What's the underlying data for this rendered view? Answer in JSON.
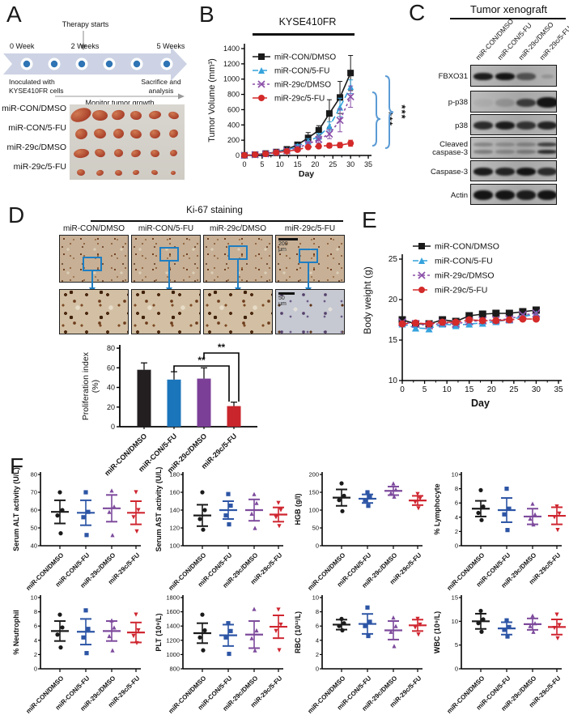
{
  "groups": [
    "miR-CON/DMSO",
    "miR-CON/5-FU",
    "miR-29c/DMSO",
    "miR-29c/5-FU"
  ],
  "panel_a": {
    "label": "A",
    "therapy_starts": "Therapy  starts",
    "weeks": [
      "0  Week",
      "2 Weeks",
      "5 Weeks"
    ],
    "inoculated": [
      "Inoculated with",
      "KYSE410FR cells"
    ],
    "sacrifice": [
      "Sacrifice and",
      "analysis"
    ],
    "monitor": "Monitor tumor growth",
    "photo_rows": [
      "miR-CON/DMSO",
      "miR-CON/5-FU",
      "miR-29c/DMSO",
      "miR-29c/5-FU"
    ]
  },
  "panel_b": {
    "label": "B",
    "title": "KYSE410FR",
    "significance": [
      "***",
      "***"
    ],
    "bracket_color": "#5b9bd5"
  },
  "panel_c": {
    "label": "C",
    "title": "Tumor xenograft",
    "lanes": [
      "miR-CON/DMSO",
      "miR-CON/5-FU",
      "miR-29c/DMSO",
      "miR-29c/5-FU"
    ],
    "rows": [
      {
        "label": [
          "FBXO31"
        ],
        "bands": [
          0.95,
          1,
          0.6,
          0.18
        ],
        "double": false
      },
      {
        "label": [
          "p-p38"
        ],
        "bands": [
          0.06,
          0.18,
          0.75,
          1
        ],
        "double": false
      },
      {
        "label": [
          "p38"
        ],
        "bands": [
          0.85,
          0.95,
          0.8,
          0.9
        ],
        "double": false
      },
      {
        "label": [
          "Cleaved",
          "caspase-3"
        ],
        "bands": [
          0.35,
          0.28,
          0.35,
          0.85
        ],
        "double": true
      },
      {
        "label": [
          "Caspase-3"
        ],
        "bands": [
          0.95,
          0.9,
          1,
          0.85
        ],
        "double": false
      },
      {
        "label": [
          "Actin"
        ],
        "bands": [
          1,
          1,
          0.95,
          1
        ],
        "double": false
      }
    ]
  },
  "panel_d": {
    "label": "D",
    "title": "Ki-67 staining",
    "columns": [
      "miR-CON/DMSO",
      "miR-CON/5-FU",
      "miR-29c/DMSO",
      "miR-29c/5-FU"
    ],
    "scale_bar_top": "200 μm",
    "scale_bar_bottom": "50 μm"
  },
  "panel_e": {
    "label": "E"
  },
  "panel_f": {
    "label": "F"
  },
  "chart_data": [
    {
      "id": "tumor_volume",
      "type": "line",
      "title": "KYSE410FR",
      "xlabel": "Day",
      "ylabel": "Tumor Volume (mm³)",
      "xlim": [
        0,
        35
      ],
      "ylim": [
        0,
        1400
      ],
      "xticks": [
        0,
        5,
        10,
        15,
        20,
        25,
        30,
        35
      ],
      "yticks": [
        0,
        200,
        400,
        600,
        800,
        1000,
        1200,
        1400
      ],
      "x": [
        0,
        3,
        6,
        9,
        12,
        15,
        18,
        21,
        24,
        27,
        30
      ],
      "series": [
        {
          "name": "miR-CON/DMSO",
          "color": "#1a1a1a",
          "dash": "",
          "marker": "square",
          "values": [
            2,
            10,
            25,
            45,
            80,
            140,
            230,
            330,
            550,
            760,
            1080
          ],
          "errors": [
            2,
            3,
            5,
            8,
            15,
            30,
            70,
            60,
            180,
            210,
            230
          ]
        },
        {
          "name": "miR-CON/5-FU",
          "color": "#35a3dc",
          "dash": "7,4",
          "marker": "triangle",
          "values": [
            2,
            10,
            22,
            42,
            70,
            120,
            185,
            250,
            380,
            630,
            900
          ],
          "errors": [
            2,
            3,
            5,
            8,
            12,
            25,
            35,
            40,
            60,
            120,
            90
          ]
        },
        {
          "name": "miR-29c/DMSO",
          "color": "#8a4fa8",
          "dash": "3,3",
          "marker": "x",
          "values": [
            2,
            10,
            20,
            40,
            60,
            100,
            150,
            210,
            280,
            460,
            770
          ],
          "errors": [
            2,
            3,
            5,
            8,
            10,
            20,
            30,
            45,
            60,
            150,
            140
          ]
        },
        {
          "name": "miR-29c/5-FU",
          "color": "#d42a2a",
          "dash": "7,4",
          "marker": "circle",
          "values": [
            2,
            10,
            20,
            38,
            55,
            75,
            110,
            120,
            130,
            135,
            160
          ],
          "errors": [
            2,
            3,
            5,
            8,
            10,
            12,
            20,
            25,
            30,
            35,
            40
          ]
        }
      ],
      "significance": [
        "***",
        "***"
      ]
    },
    {
      "id": "proliferation_index",
      "type": "bar",
      "ylabel": [
        "Proliferation index",
        "(%)"
      ],
      "ylim": [
        0,
        80
      ],
      "yticks": [
        0,
        20,
        40,
        60,
        80
      ],
      "categories": [
        "miR-CON/DMSO",
        "miR-CON/5-FU",
        "miR-29c/DMSO",
        "miR-29c/5-FU"
      ],
      "values": [
        58,
        48,
        49,
        21
      ],
      "errors": [
        7,
        8,
        11,
        4
      ],
      "colors": [
        "#231f20",
        "#1b75bb",
        "#7c3f98",
        "#c9252c"
      ],
      "significance": [
        {
          "from": 1,
          "to": 3,
          "label": "**"
        },
        {
          "from": 2,
          "to": 3,
          "label": "**"
        }
      ]
    },
    {
      "id": "body_weight",
      "type": "line",
      "xlabel": "Day",
      "ylabel": "Body weight (g)",
      "xlim": [
        0,
        35
      ],
      "ylim": [
        10,
        25
      ],
      "xticks": [
        0,
        5,
        10,
        15,
        20,
        25,
        30,
        35
      ],
      "yticks": [
        10,
        15,
        20,
        25
      ],
      "x": [
        0,
        3,
        6,
        9,
        12,
        15,
        18,
        21,
        24,
        27,
        30
      ],
      "series": [
        {
          "name": "miR-CON/DMSO",
          "color": "#1a1a1a",
          "dash": "",
          "marker": "square",
          "values": [
            17.5,
            17,
            17,
            17.5,
            17.3,
            18,
            18.2,
            18.3,
            18.3,
            18.5,
            18.7
          ],
          "err": 0.8
        },
        {
          "name": "miR-CON/5-FU",
          "color": "#35a3dc",
          "dash": "7,4",
          "marker": "triangle",
          "values": [
            17,
            16.5,
            16.4,
            17,
            16.8,
            17,
            17.1,
            17.3,
            17.5,
            17.9,
            18.2
          ],
          "err": 0.8
        },
        {
          "name": "miR-29c/DMSO",
          "color": "#8a4fa8",
          "dash": "3,3",
          "marker": "x",
          "values": [
            17.2,
            17,
            16.8,
            17.1,
            17,
            17.3,
            17.4,
            17.5,
            17.6,
            18.1,
            18.3
          ],
          "err": 0.7
        },
        {
          "name": "miR-29c/5-FU",
          "color": "#d42a2a",
          "dash": "7,4",
          "marker": "circle",
          "values": [
            17,
            17.1,
            17,
            17.2,
            17.2,
            17.5,
            17.4,
            17.4,
            17.5,
            17.6,
            17.6
          ],
          "err": 0.7
        }
      ]
    },
    {
      "id": "serum_alt",
      "type": "scatter",
      "ylabel": "Serum ALT activity  (U/L)",
      "ylim": [
        40,
        80
      ],
      "yticks": [
        40,
        50,
        60,
        70,
        80
      ],
      "groups": [
        {
          "name": "miR-CON/DMSO",
          "color": "#1a1a1a",
          "marker": "circle",
          "points": [
            70,
            60,
            57,
            47
          ],
          "mean": 59,
          "sd": 6.5
        },
        {
          "name": "miR-CON/5-FU",
          "color": "#2d55a5",
          "marker": "square",
          "points": [
            70,
            59,
            56,
            46
          ],
          "mean": 58.5,
          "sd": 7
        },
        {
          "name": "miR-29c/DMSO",
          "color": "#7d4a9c",
          "marker": "triangle",
          "points": [
            71,
            62,
            59,
            46
          ],
          "mean": 61,
          "sd": 7.5
        },
        {
          "name": "miR-29c/5-FU",
          "color": "#cf2630",
          "marker": "triangle-down",
          "points": [
            70,
            60,
            56,
            48
          ],
          "mean": 58.5,
          "sd": 6.5
        }
      ]
    },
    {
      "id": "serum_ast",
      "type": "scatter",
      "ylabel": "Serum AST activity  (U/L)",
      "ylim": [
        100,
        180
      ],
      "yticks": [
        100,
        120,
        140,
        160,
        180
      ],
      "groups": [
        {
          "name": "miR-CON/DMSO",
          "color": "#1a1a1a",
          "marker": "circle",
          "points": [
            160,
            140,
            130,
            118
          ],
          "mean": 134,
          "sd": 12
        },
        {
          "name": "miR-CON/5-FU",
          "color": "#2d55a5",
          "marker": "square",
          "points": [
            158,
            145,
            134,
            124
          ],
          "mean": 140,
          "sd": 10
        },
        {
          "name": "miR-29c/DMSO",
          "color": "#7d4a9c",
          "marker": "triangle",
          "points": [
            158,
            148,
            136,
            120
          ],
          "mean": 140,
          "sd": 12
        },
        {
          "name": "miR-29c/5-FU",
          "color": "#cf2630",
          "marker": "triangle-down",
          "points": [
            148,
            140,
            132,
            122
          ],
          "mean": 135,
          "sd": 8
        }
      ]
    },
    {
      "id": "hgb",
      "type": "scatter",
      "ylabel": "HGB  (g/l)",
      "ylim": [
        0,
        200
      ],
      "yticks": [
        0,
        50,
        100,
        150,
        200
      ],
      "groups": [
        {
          "name": "miR-CON/DMSO",
          "color": "#1a1a1a",
          "marker": "circle",
          "points": [
            175,
            140,
            128,
            97
          ],
          "mean": 135,
          "sd": 23
        },
        {
          "name": "miR-CON/5-FU",
          "color": "#2d55a5",
          "marker": "square",
          "points": [
            150,
            138,
            128,
            112
          ],
          "mean": 132,
          "sd": 12
        },
        {
          "name": "miR-29c/DMSO",
          "color": "#7d4a9c",
          "marker": "triangle",
          "points": [
            175,
            158,
            148,
            138
          ],
          "mean": 154,
          "sd": 12
        },
        {
          "name": "miR-29c/5-FU",
          "color": "#cf2630",
          "marker": "triangle-down",
          "points": [
            145,
            132,
            122,
            105
          ],
          "mean": 127,
          "sd": 13
        }
      ]
    },
    {
      "id": "lymphocyte",
      "type": "scatter",
      "ylabel": "% Lymphocyte",
      "ylim": [
        0,
        10
      ],
      "yticks": [
        0,
        2,
        4,
        6,
        8,
        10
      ],
      "groups": [
        {
          "name": "miR-CON/DMSO",
          "color": "#1a1a1a",
          "marker": "circle",
          "points": [
            7.8,
            5.5,
            4.6,
            3.6
          ],
          "mean": 5.2,
          "sd": 1.1
        },
        {
          "name": "miR-CON/5-FU",
          "color": "#2d55a5",
          "marker": "square",
          "points": [
            8,
            5.2,
            4.4,
            2.2
          ],
          "mean": 5,
          "sd": 1.7
        },
        {
          "name": "miR-29c/DMSO",
          "color": "#7d4a9c",
          "marker": "triangle",
          "points": [
            5.9,
            4.4,
            3.8,
            3
          ],
          "mean": 4.1,
          "sd": 1.1
        },
        {
          "name": "miR-29c/5-FU",
          "color": "#cf2630",
          "marker": "triangle-down",
          "points": [
            5.5,
            4.5,
            4,
            2.2
          ],
          "mean": 4.2,
          "sd": 1.2
        }
      ]
    },
    {
      "id": "neutrophil",
      "type": "scatter",
      "ylabel": "% Neutrophil",
      "ylim": [
        0,
        10
      ],
      "yticks": [
        0,
        2,
        4,
        6,
        8,
        10
      ],
      "groups": [
        {
          "name": "miR-CON/DMSO",
          "color": "#1a1a1a",
          "marker": "circle",
          "points": [
            7.6,
            5.8,
            4.8,
            3
          ],
          "mean": 5.3,
          "sd": 1.4
        },
        {
          "name": "miR-CON/5-FU",
          "color": "#2d55a5",
          "marker": "square",
          "points": [
            8.2,
            5.6,
            4.4,
            2.2
          ],
          "mean": 5.2,
          "sd": 1.8
        },
        {
          "name": "miR-29c/DMSO",
          "color": "#7d4a9c",
          "marker": "triangle",
          "points": [
            6.8,
            5.8,
            4.6,
            2.6
          ],
          "mean": 5.3,
          "sd": 1.4
        },
        {
          "name": "miR-29c/5-FU",
          "color": "#cf2630",
          "marker": "triangle-down",
          "points": [
            7.6,
            5.4,
            4.6,
            3.6
          ],
          "mean": 5.1,
          "sd": 1.4
        }
      ]
    },
    {
      "id": "plt",
      "type": "scatter",
      "ylabel": "PLT  (10⁹/L)",
      "ylim": [
        800,
        1800
      ],
      "yticks": [
        800,
        1000,
        1200,
        1400,
        1600,
        1800
      ],
      "groups": [
        {
          "name": "miR-CON/DMSO",
          "color": "#1a1a1a",
          "marker": "circle",
          "points": [
            1560,
            1340,
            1240,
            1060
          ],
          "mean": 1300,
          "sd": 140
        },
        {
          "name": "miR-CON/5-FU",
          "color": "#2d55a5",
          "marker": "square",
          "points": [
            1440,
            1330,
            1240,
            1010
          ],
          "mean": 1270,
          "sd": 150
        },
        {
          "name": "miR-29c/DMSO",
          "color": "#7d4a9c",
          "marker": "triangle",
          "points": [
            1640,
            1340,
            1230,
            1060
          ],
          "mean": 1280,
          "sd": 190
        },
        {
          "name": "miR-29c/5-FU",
          "color": "#cf2630",
          "marker": "triangle-down",
          "points": [
            1630,
            1420,
            1330,
            1060
          ],
          "mean": 1390,
          "sd": 160
        }
      ]
    },
    {
      "id": "rbc",
      "type": "scatter",
      "ylabel": "RBC  (10¹²/L)",
      "ylim": [
        0,
        10
      ],
      "yticks": [
        0,
        2,
        4,
        6,
        8,
        10
      ],
      "groups": [
        {
          "name": "miR-CON/DMSO",
          "color": "#1a1a1a",
          "marker": "circle",
          "points": [
            7,
            6.4,
            6,
            5.4
          ],
          "mean": 6.2,
          "sd": 0.7
        },
        {
          "name": "miR-CON/5-FU",
          "color": "#2d55a5",
          "marker": "square",
          "points": [
            8.6,
            6.6,
            6,
            4.6
          ],
          "mean": 6.3,
          "sd": 1.4
        },
        {
          "name": "miR-29c/DMSO",
          "color": "#7d4a9c",
          "marker": "triangle",
          "points": [
            7.2,
            6,
            5.2,
            3.2
          ],
          "mean": 5.4,
          "sd": 1.3
        },
        {
          "name": "miR-29c/5-FU",
          "color": "#cf2630",
          "marker": "triangle-down",
          "points": [
            7,
            6.2,
            5.8,
            4.8
          ],
          "mean": 6.1,
          "sd": 0.8
        }
      ]
    },
    {
      "id": "wbc",
      "type": "scatter",
      "ylabel": "WBC  (10⁹/L)",
      "ylim": [
        0,
        15
      ],
      "yticks": [
        0,
        5,
        10,
        15
      ],
      "groups": [
        {
          "name": "miR-CON/DMSO",
          "color": "#1a1a1a",
          "marker": "circle",
          "points": [
            12.2,
            10.4,
            9.6,
            7.8
          ],
          "mean": 10,
          "sd": 1.6
        },
        {
          "name": "miR-CON/5-FU",
          "color": "#2d55a5",
          "marker": "square",
          "points": [
            10.2,
            8.8,
            8.2,
            6.8
          ],
          "mean": 8.5,
          "sd": 1.3
        },
        {
          "name": "miR-29c/DMSO",
          "color": "#7d4a9c",
          "marker": "triangle",
          "points": [
            11.2,
            9.6,
            9,
            7.8
          ],
          "mean": 9.4,
          "sd": 1.2
        },
        {
          "name": "miR-29c/5-FU",
          "color": "#cf2630",
          "marker": "triangle-down",
          "points": [
            11.4,
            9.2,
            8.6,
            6.4
          ],
          "mean": 8.8,
          "sd": 1.6
        }
      ]
    }
  ]
}
